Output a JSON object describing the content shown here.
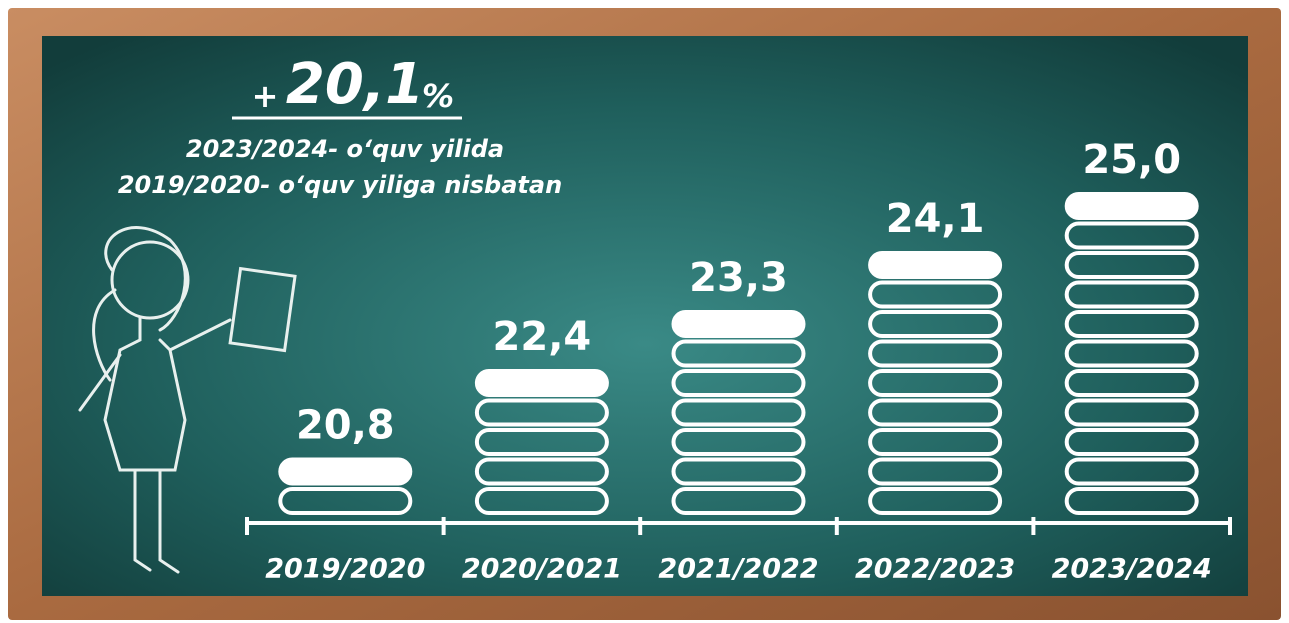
{
  "chart_data": {
    "type": "bar",
    "headline_sign": "+",
    "headline_value": "20,1",
    "headline_unit": "%",
    "subtitle_lines": [
      "2023/2024- o‘quv yilida",
      "2019/2020- o‘quv yiliga nisbatan"
    ],
    "categories": [
      "2019/2020",
      "2020/2021",
      "2021/2022",
      "2022/2023",
      "2023/2024"
    ],
    "values": [
      20.8,
      22.4,
      23.3,
      24.1,
      25.0
    ],
    "value_labels": [
      "20,8",
      "22,4",
      "23,3",
      "24,1",
      "25,0"
    ],
    "color": "#ffffff",
    "ylim": [
      19.5,
      25.2
    ]
  }
}
